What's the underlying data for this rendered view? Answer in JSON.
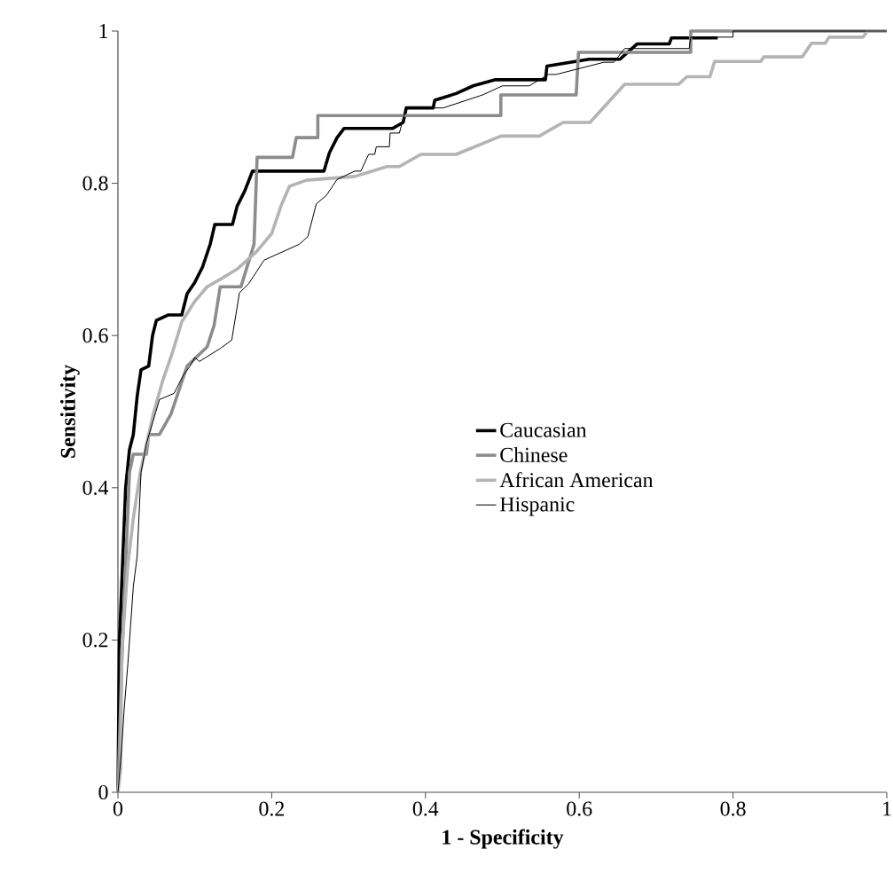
{
  "chart_data": {
    "type": "line",
    "xlabel": "1 - Specificity",
    "ylabel": "Sensitivity",
    "xlim": [
      0,
      1
    ],
    "ylim": [
      0,
      1
    ],
    "xticks": [
      0,
      0.2,
      0.4,
      0.6,
      0.8,
      1
    ],
    "yticks": [
      0,
      0.2,
      0.4,
      0.6,
      0.8,
      1
    ],
    "grid": false,
    "legend": "right",
    "series": [
      {
        "name": "Caucasian",
        "color": "#000000",
        "x": [
          0,
          0.002,
          0.006,
          0.01,
          0.015,
          0.02,
          0.025,
          0.03,
          0.04,
          0.045,
          0.05,
          0.065,
          0.083,
          0.09,
          0.1,
          0.11,
          0.12,
          0.126,
          0.149,
          0.155,
          0.165,
          0.175,
          0.268,
          0.275,
          0.285,
          0.294,
          0.357,
          0.371,
          0.375,
          0.41,
          0.412,
          0.44,
          0.462,
          0.49,
          0.556,
          0.558,
          0.613,
          0.653,
          0.675,
          0.717,
          0.72,
          0.78
        ],
        "values": [
          0,
          0.2,
          0.3,
          0.4,
          0.45,
          0.47,
          0.52,
          0.555,
          0.56,
          0.6,
          0.62,
          0.627,
          0.627,
          0.655,
          0.67,
          0.69,
          0.72,
          0.746,
          0.746,
          0.77,
          0.79,
          0.816,
          0.816,
          0.84,
          0.86,
          0.872,
          0.872,
          0.88,
          0.899,
          0.899,
          0.909,
          0.918,
          0.928,
          0.936,
          0.936,
          0.954,
          0.963,
          0.963,
          0.983,
          0.983,
          0.991,
          0.991
        ]
      },
      {
        "name": "Chinese",
        "color": "#8c8c8c",
        "x": [
          0,
          0.005,
          0.01,
          0.015,
          0.02,
          0.037,
          0.04,
          0.054,
          0.069,
          0.08,
          0.09,
          0.116,
          0.125,
          0.133,
          0.16,
          0.177,
          0.181,
          0.19,
          0.227,
          0.232,
          0.26,
          0.26,
          0.498,
          0.498,
          0.596,
          0.599,
          0.745,
          0.745,
          1
        ],
        "values": [
          0,
          0.17,
          0.3,
          0.42,
          0.444,
          0.444,
          0.47,
          0.47,
          0.497,
          0.53,
          0.56,
          0.585,
          0.613,
          0.664,
          0.664,
          0.72,
          0.834,
          0.834,
          0.834,
          0.86,
          0.86,
          0.889,
          0.889,
          0.916,
          0.916,
          0.972,
          0.972,
          1,
          1
        ]
      },
      {
        "name": "African American",
        "color": "#b4b4b4",
        "x": [
          0,
          0.0035,
          0.005,
          0.013,
          0.02,
          0.029,
          0.04,
          0.046,
          0.058,
          0.071,
          0.083,
          0.1,
          0.116,
          0.135,
          0.156,
          0.18,
          0.2,
          0.212,
          0.223,
          0.245,
          0.308,
          0.35,
          0.366,
          0.394,
          0.44,
          0.498,
          0.548,
          0.579,
          0.614,
          0.659,
          0.729,
          0.74,
          0.77,
          0.776,
          0.836,
          0.84,
          0.89,
          0.902,
          0.92,
          0.925,
          0.969,
          0.975,
          1
        ],
        "values": [
          0,
          0.03,
          0.186,
          0.3,
          0.36,
          0.42,
          0.47,
          0.497,
          0.54,
          0.578,
          0.618,
          0.645,
          0.664,
          0.675,
          0.688,
          0.71,
          0.734,
          0.77,
          0.796,
          0.804,
          0.809,
          0.822,
          0.822,
          0.838,
          0.838,
          0.862,
          0.862,
          0.88,
          0.88,
          0.93,
          0.93,
          0.94,
          0.94,
          0.96,
          0.96,
          0.966,
          0.966,
          0.984,
          0.984,
          0.992,
          0.992,
          1,
          1
        ]
      },
      {
        "name": "Hispanic",
        "color": "#000000",
        "x": [
          0,
          0.005,
          0.008,
          0.013,
          0.02,
          0.025,
          0.03,
          0.037,
          0.054,
          0.073,
          0.085,
          0.094,
          0.1,
          0.106,
          0.133,
          0.148,
          0.158,
          0.17,
          0.19,
          0.236,
          0.247,
          0.258,
          0.271,
          0.285,
          0.308,
          0.316,
          0.326,
          0.334,
          0.336,
          0.353,
          0.354,
          0.366,
          0.375,
          0.423,
          0.474,
          0.5,
          0.535,
          0.56,
          0.57,
          0.632,
          0.645,
          0.659,
          0.743,
          0.745,
          0.8,
          0.8,
          1
        ],
        "values": [
          0,
          0.06,
          0.108,
          0.17,
          0.27,
          0.31,
          0.42,
          0.458,
          0.516,
          0.524,
          0.548,
          0.56,
          0.571,
          0.566,
          0.583,
          0.594,
          0.656,
          0.668,
          0.699,
          0.72,
          0.73,
          0.773,
          0.784,
          0.805,
          0.816,
          0.816,
          0.838,
          0.838,
          0.848,
          0.848,
          0.866,
          0.866,
          0.899,
          0.899,
          0.916,
          0.928,
          0.928,
          0.943,
          0.943,
          0.959,
          0.959,
          0.977,
          0.977,
          0.992,
          0.992,
          1,
          1
        ]
      }
    ]
  }
}
